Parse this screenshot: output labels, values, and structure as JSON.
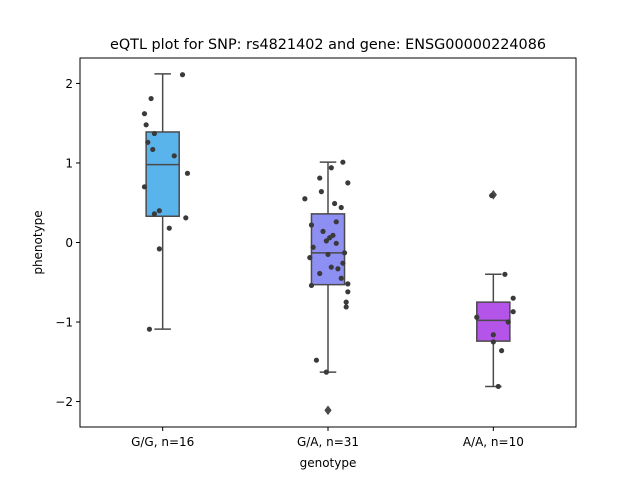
{
  "chart_data": {
    "type": "box",
    "title": "eQTL plot for SNP: rs4821402 and gene: ENSG00000224086",
    "xlabel": "genotype",
    "ylabel": "phenotype",
    "ylim": [
      -2.32,
      2.32
    ],
    "yticks": [
      -2,
      -1,
      0,
      1,
      2
    ],
    "grid": false,
    "categories": [
      "G/G, n=16",
      "G/A, n=31",
      "A/A, n=10"
    ],
    "boxes": [
      {
        "category": "G/G, n=16",
        "color": "#5ab4ec",
        "q1": 0.33,
        "median": 0.98,
        "q3": 1.39,
        "whisker_low": -1.09,
        "whisker_high": 2.12,
        "outliers": [],
        "points": [
          2.11,
          1.81,
          1.62,
          1.48,
          1.37,
          1.26,
          1.17,
          1.09,
          0.87,
          0.7,
          0.4,
          0.36,
          0.31,
          0.18,
          -0.08,
          -1.09
        ],
        "jitter": [
          0.12,
          -0.07,
          -0.11,
          -0.1,
          -0.05,
          -0.09,
          -0.06,
          0.07,
          0.15,
          -0.11,
          -0.02,
          -0.05,
          0.14,
          0.04,
          -0.02,
          -0.08
        ]
      },
      {
        "category": "G/A, n=31",
        "color": "#8e8ff3",
        "q1": -0.53,
        "median": -0.13,
        "q3": 0.36,
        "whisker_low": -1.63,
        "whisker_high": 1.01,
        "outliers": [
          -2.11
        ],
        "points": [
          1.01,
          0.94,
          0.81,
          0.75,
          0.64,
          0.55,
          0.49,
          0.44,
          0.26,
          0.22,
          0.14,
          0.09,
          0.06,
          0.02,
          -0.01,
          -0.06,
          -0.13,
          -0.15,
          -0.19,
          -0.26,
          -0.31,
          -0.33,
          -0.39,
          -0.45,
          -0.52,
          -0.54,
          -0.62,
          -0.75,
          -0.81,
          -1.48,
          -1.63
        ],
        "jitter": [
          0.09,
          0.02,
          -0.05,
          0.12,
          -0.04,
          -0.14,
          0.04,
          0.08,
          0.05,
          -0.1,
          -0.03,
          0.03,
          0.01,
          -0.01,
          0.05,
          -0.09,
          0.1,
          0.0,
          -0.11,
          0.09,
          0.02,
          0.06,
          -0.05,
          0.08,
          0.12,
          -0.1,
          0.12,
          0.11,
          0.11,
          -0.07,
          -0.01
        ]
      },
      {
        "category": "A/A, n=10",
        "color": "#b554e8",
        "q1": -1.24,
        "median": -0.98,
        "q3": -0.75,
        "whisker_low": -1.81,
        "whisker_high": -0.4,
        "outliers": [
          0.6
        ],
        "points": [
          -0.4,
          -0.7,
          -0.87,
          -0.94,
          -1.0,
          -1.16,
          -1.25,
          -1.36,
          -1.81,
          0.59
        ],
        "jitter": [
          0.07,
          0.12,
          0.12,
          -0.1,
          0.09,
          0.0,
          0.0,
          0.05,
          0.03,
          -0.01
        ]
      }
    ],
    "point_color": "#3a3a3a",
    "line_color": "#4a4a4a"
  }
}
